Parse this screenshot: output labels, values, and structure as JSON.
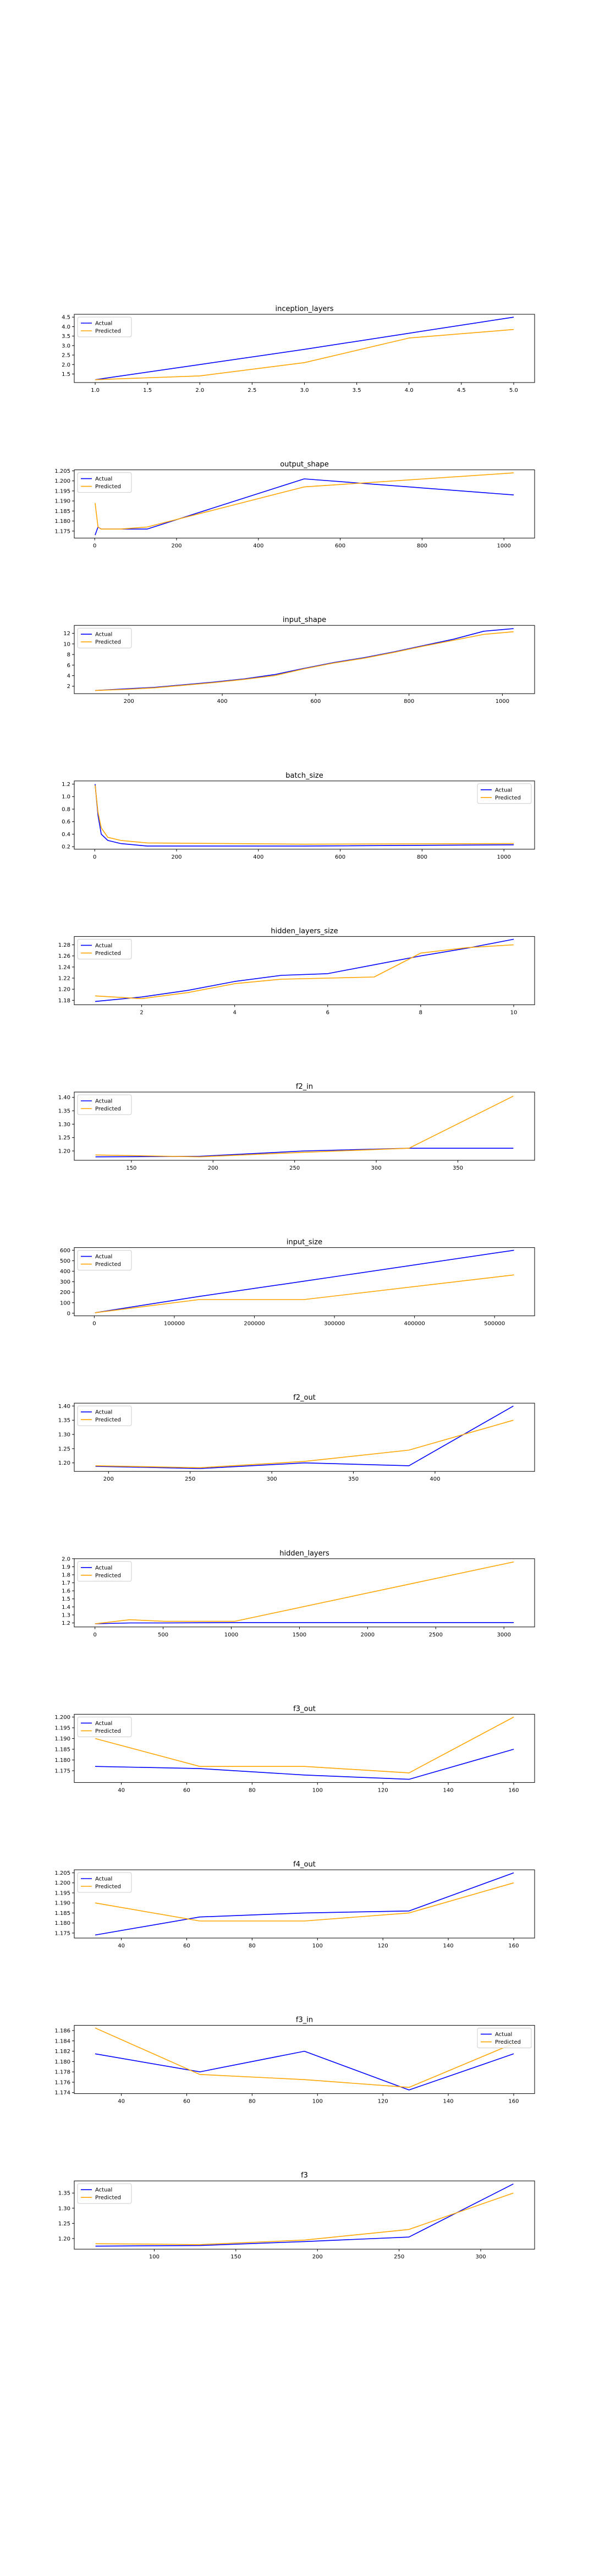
{
  "legend_labels": {
    "actual": "Actual",
    "predicted": "Predicted"
  },
  "colors": {
    "actual": "#0000ff",
    "predicted": "#ffa500",
    "axes": "#000000"
  },
  "chart_data": [
    {
      "type": "line",
      "title": "inception_layers",
      "x": [
        1,
        2,
        3,
        4,
        5
      ],
      "series": [
        {
          "name": "Actual",
          "values": [
            1.2,
            2.0,
            2.8,
            3.65,
            4.5
          ]
        },
        {
          "name": "Predicted",
          "values": [
            1.2,
            1.4,
            2.1,
            3.4,
            3.85
          ]
        }
      ],
      "xticks": [
        1.0,
        1.5,
        2.0,
        2.5,
        3.0,
        3.5,
        4.0,
        4.5,
        5.0
      ],
      "xtick_labels": [
        "1.0",
        "1.5",
        "2.0",
        "2.5",
        "3.0",
        "3.5",
        "4.0",
        "4.5",
        "5.0"
      ],
      "yticks": [
        1.5,
        2.0,
        2.5,
        3.0,
        3.5,
        4.0,
        4.5
      ],
      "ytick_labels": [
        "1.5",
        "2.0",
        "2.5",
        "3.0",
        "3.5",
        "4.0",
        "4.5"
      ],
      "xlim": [
        0.8,
        5.2
      ],
      "ylim": [
        1.05,
        4.65
      ],
      "legend": "upper left"
    },
    {
      "type": "line",
      "title": "output_shape",
      "x": [
        1,
        8,
        16,
        32,
        64,
        128,
        512,
        1024
      ],
      "series": [
        {
          "name": "Actual",
          "values": [
            1.173,
            1.177,
            1.176,
            1.176,
            1.176,
            1.176,
            1.201,
            1.193
          ]
        },
        {
          "name": "Predicted",
          "values": [
            1.189,
            1.177,
            1.176,
            1.176,
            1.176,
            1.177,
            1.197,
            1.204
          ]
        }
      ],
      "xticks": [
        0,
        200,
        400,
        600,
        800,
        1000
      ],
      "xtick_labels": [
        "0",
        "200",
        "400",
        "600",
        "800",
        "1000"
      ],
      "yticks": [
        1.175,
        1.18,
        1.185,
        1.19,
        1.195,
        1.2,
        1.205
      ],
      "ytick_labels": [
        "1.175",
        "1.180",
        "1.185",
        "1.190",
        "1.195",
        "1.200",
        "1.205"
      ],
      "xlim": [
        -50,
        1075
      ],
      "ylim": [
        1.1715,
        1.2055
      ],
      "legend": "upper left"
    },
    {
      "type": "line",
      "title": "input_shape",
      "x": [
        128,
        192,
        256,
        320,
        384,
        448,
        512,
        576,
        640,
        704,
        768,
        832,
        896,
        960,
        1024
      ],
      "series": [
        {
          "name": "Actual",
          "values": [
            1.2,
            1.5,
            1.8,
            2.3,
            2.8,
            3.4,
            4.2,
            5.4,
            6.5,
            7.4,
            8.5,
            9.7,
            10.9,
            12.4,
            12.9
          ]
        },
        {
          "name": "Predicted",
          "values": [
            1.2,
            1.4,
            1.7,
            2.2,
            2.7,
            3.3,
            4.0,
            5.3,
            6.4,
            7.3,
            8.4,
            9.6,
            10.7,
            11.8,
            12.3
          ]
        }
      ],
      "xticks": [
        200,
        400,
        600,
        800,
        1000
      ],
      "xtick_labels": [
        "200",
        "400",
        "600",
        "800",
        "1000"
      ],
      "yticks": [
        2,
        4,
        6,
        8,
        10,
        12
      ],
      "ytick_labels": [
        "2",
        "4",
        "6",
        "8",
        "10",
        "12"
      ],
      "xlim": [
        83,
        1069
      ],
      "ylim": [
        0.6,
        13.5
      ],
      "legend": "upper left"
    },
    {
      "type": "line",
      "title": "batch_size",
      "x": [
        1,
        8,
        16,
        32,
        64,
        128,
        512,
        1024
      ],
      "series": [
        {
          "name": "Actual",
          "values": [
            1.2,
            0.7,
            0.4,
            0.3,
            0.25,
            0.21,
            0.21,
            0.23
          ]
        },
        {
          "name": "Predicted",
          "values": [
            1.18,
            0.75,
            0.5,
            0.35,
            0.3,
            0.26,
            0.24,
            0.25
          ]
        }
      ],
      "xticks": [
        0,
        200,
        400,
        600,
        800,
        1000
      ],
      "xtick_labels": [
        "0",
        "200",
        "400",
        "600",
        "800",
        "1000"
      ],
      "yticks": [
        0.2,
        0.4,
        0.6,
        0.8,
        1.0,
        1.2
      ],
      "ytick_labels": [
        "0.2",
        "0.4",
        "0.6",
        "0.8",
        "1.0",
        "1.2"
      ],
      "xlim": [
        -50,
        1075
      ],
      "ylim": [
        0.16,
        1.25
      ],
      "legend": "upper right"
    },
    {
      "type": "line",
      "title": "hidden_layers_size",
      "x": [
        1,
        2,
        3,
        4,
        5,
        6,
        7,
        8,
        9,
        10
      ],
      "series": [
        {
          "name": "Actual",
          "values": [
            1.178,
            1.186,
            1.198,
            1.214,
            1.225,
            1.228,
            1.244,
            1.26,
            1.274,
            1.29
          ]
        },
        {
          "name": "Predicted",
          "values": [
            1.188,
            1.183,
            1.194,
            1.21,
            1.218,
            1.22,
            1.222,
            1.265,
            1.275,
            1.28
          ]
        }
      ],
      "xticks": [
        2,
        4,
        6,
        8,
        10
      ],
      "xtick_labels": [
        "2",
        "4",
        "6",
        "8",
        "10"
      ],
      "yticks": [
        1.18,
        1.2,
        1.22,
        1.24,
        1.26,
        1.28
      ],
      "ytick_labels": [
        "1.18",
        "1.20",
        "1.22",
        "1.24",
        "1.26",
        "1.28"
      ],
      "xlim": [
        0.55,
        10.45
      ],
      "ylim": [
        1.172,
        1.295
      ],
      "legend": "upper left"
    },
    {
      "type": "line",
      "title": "f2_in",
      "x": [
        128,
        192,
        256,
        320,
        384
      ],
      "series": [
        {
          "name": "Actual",
          "values": [
            1.178,
            1.18,
            1.2,
            1.21,
            1.21
          ]
        },
        {
          "name": "Predicted",
          "values": [
            1.185,
            1.178,
            1.195,
            1.21,
            1.405
          ]
        }
      ],
      "xticks": [
        150,
        200,
        250,
        300,
        350
      ],
      "xtick_labels": [
        "150",
        "200",
        "250",
        "300",
        "350"
      ],
      "yticks": [
        1.2,
        1.25,
        1.3,
        1.35,
        1.4
      ],
      "ytick_labels": [
        "1.20",
        "1.25",
        "1.30",
        "1.35",
        "1.40"
      ],
      "xlim": [
        115,
        397
      ],
      "ylim": [
        1.165,
        1.42
      ],
      "legend": "upper left"
    },
    {
      "type": "line",
      "title": "input_size",
      "x": [
        1000,
        131072,
        262144,
        524288
      ],
      "series": [
        {
          "name": "Actual",
          "values": [
            5,
            160,
            305,
            600
          ]
        },
        {
          "name": "Predicted",
          "values": [
            5,
            130,
            130,
            365
          ]
        }
      ],
      "xticks": [
        0,
        100000,
        200000,
        300000,
        400000,
        500000
      ],
      "xtick_labels": [
        "0",
        "100000",
        "200000",
        "300000",
        "400000",
        "500000"
      ],
      "yticks": [
        0,
        100,
        200,
        300,
        400,
        500,
        600
      ],
      "ytick_labels": [
        "0",
        "100",
        "200",
        "300",
        "400",
        "500",
        "600"
      ],
      "xlim": [
        -25000,
        550000
      ],
      "ylim": [
        -25,
        625
      ],
      "legend": "upper left"
    },
    {
      "type": "line",
      "title": "f2_out",
      "x": [
        192,
        256,
        320,
        384,
        448
      ],
      "series": [
        {
          "name": "Actual",
          "values": [
            1.188,
            1.18,
            1.2,
            1.19,
            1.4
          ]
        },
        {
          "name": "Predicted",
          "values": [
            1.19,
            1.183,
            1.205,
            1.245,
            1.35
          ]
        }
      ],
      "xticks": [
        200,
        250,
        300,
        350,
        400
      ],
      "xtick_labels": [
        "200",
        "250",
        "300",
        "350",
        "400"
      ],
      "yticks": [
        1.2,
        1.25,
        1.3,
        1.35,
        1.4
      ],
      "ytick_labels": [
        "1.20",
        "1.25",
        "1.30",
        "1.35",
        "1.40"
      ],
      "xlim": [
        179,
        461
      ],
      "ylim": [
        1.17,
        1.41
      ],
      "legend": "upper left"
    },
    {
      "type": "line",
      "title": "hidden_layers",
      "x": [
        1,
        256,
        512,
        1024,
        3072
      ],
      "series": [
        {
          "name": "Actual",
          "values": [
            1.19,
            1.2,
            1.2,
            1.205,
            1.205
          ]
        },
        {
          "name": "Predicted",
          "values": [
            1.19,
            1.24,
            1.22,
            1.22,
            1.96
          ]
        }
      ],
      "xticks": [
        0,
        500,
        1000,
        1500,
        2000,
        2500,
        3000
      ],
      "xtick_labels": [
        "0",
        "500",
        "1000",
        "1500",
        "2000",
        "2500",
        "3000"
      ],
      "yticks": [
        1.2,
        1.3,
        1.4,
        1.5,
        1.6,
        1.7,
        1.8,
        1.9,
        2.0
      ],
      "ytick_labels": [
        "1.2",
        "1.3",
        "1.4",
        "1.5",
        "1.6",
        "1.7",
        "1.8",
        "1.9",
        "2.0"
      ],
      "xlim": [
        -152,
        3225
      ],
      "ylim": [
        1.15,
        2.0
      ],
      "legend": "upper left"
    },
    {
      "type": "line",
      "title": "f3_out",
      "x": [
        32,
        64,
        96,
        128,
        160
      ],
      "series": [
        {
          "name": "Actual",
          "values": [
            1.177,
            1.176,
            1.173,
            1.171,
            1.185
          ]
        },
        {
          "name": "Predicted",
          "values": [
            1.19,
            1.177,
            1.177,
            1.174,
            1.2
          ]
        }
      ],
      "xticks": [
        40,
        60,
        80,
        100,
        120,
        140,
        160
      ],
      "xtick_labels": [
        "40",
        "60",
        "80",
        "100",
        "120",
        "140",
        "160"
      ],
      "yticks": [
        1.175,
        1.18,
        1.185,
        1.19,
        1.195,
        1.2
      ],
      "ytick_labels": [
        "1.175",
        "1.180",
        "1.185",
        "1.190",
        "1.195",
        "1.200"
      ],
      "xlim": [
        25.6,
        166.4
      ],
      "ylim": [
        1.1695,
        1.2013
      ],
      "legend": "upper left"
    },
    {
      "type": "line",
      "title": "f4_out",
      "x": [
        32,
        64,
        96,
        128,
        160
      ],
      "series": [
        {
          "name": "Actual",
          "values": [
            1.174,
            1.183,
            1.185,
            1.186,
            1.205
          ]
        },
        {
          "name": "Predicted",
          "values": [
            1.19,
            1.181,
            1.181,
            1.185,
            1.2
          ]
        }
      ],
      "xticks": [
        40,
        60,
        80,
        100,
        120,
        140,
        160
      ],
      "xtick_labels": [
        "40",
        "60",
        "80",
        "100",
        "120",
        "140",
        "160"
      ],
      "yticks": [
        1.175,
        1.18,
        1.185,
        1.19,
        1.195,
        1.2,
        1.205
      ],
      "ytick_labels": [
        "1.175",
        "1.180",
        "1.185",
        "1.190",
        "1.195",
        "1.200",
        "1.205"
      ],
      "xlim": [
        25.6,
        166.4
      ],
      "ylim": [
        1.1725,
        1.2065
      ],
      "legend": "upper left"
    },
    {
      "type": "line",
      "title": "f3_in",
      "x": [
        32,
        64,
        96,
        128,
        160
      ],
      "series": [
        {
          "name": "Actual",
          "values": [
            1.1815,
            1.178,
            1.182,
            1.1745,
            1.1815
          ]
        },
        {
          "name": "Predicted",
          "values": [
            1.1865,
            1.1775,
            1.1765,
            1.175,
            1.1835
          ]
        }
      ],
      "xticks": [
        40,
        60,
        80,
        100,
        120,
        140,
        160
      ],
      "xtick_labels": [
        "40",
        "60",
        "80",
        "100",
        "120",
        "140",
        "160"
      ],
      "yticks": [
        1.174,
        1.176,
        1.178,
        1.18,
        1.182,
        1.184,
        1.186
      ],
      "ytick_labels": [
        "1.174",
        "1.176",
        "1.178",
        "1.180",
        "1.182",
        "1.184",
        "1.186"
      ],
      "xlim": [
        25.6,
        166.4
      ],
      "ylim": [
        1.1738,
        1.187
      ],
      "legend": "upper right"
    },
    {
      "type": "line",
      "title": "f3",
      "x": [
        64,
        128,
        192,
        256,
        320
      ],
      "series": [
        {
          "name": "Actual",
          "values": [
            1.175,
            1.177,
            1.19,
            1.205,
            1.38
          ]
        },
        {
          "name": "Predicted",
          "values": [
            1.183,
            1.18,
            1.195,
            1.23,
            1.35
          ]
        }
      ],
      "xticks": [
        100,
        150,
        200,
        250,
        300
      ],
      "xtick_labels": [
        "100",
        "150",
        "200",
        "250",
        "300"
      ],
      "yticks": [
        1.2,
        1.25,
        1.3,
        1.35
      ],
      "ytick_labels": [
        "1.20",
        "1.25",
        "1.30",
        "1.35"
      ],
      "xlim": [
        51,
        333
      ],
      "ylim": [
        1.165,
        1.39
      ],
      "legend": "upper left"
    }
  ]
}
